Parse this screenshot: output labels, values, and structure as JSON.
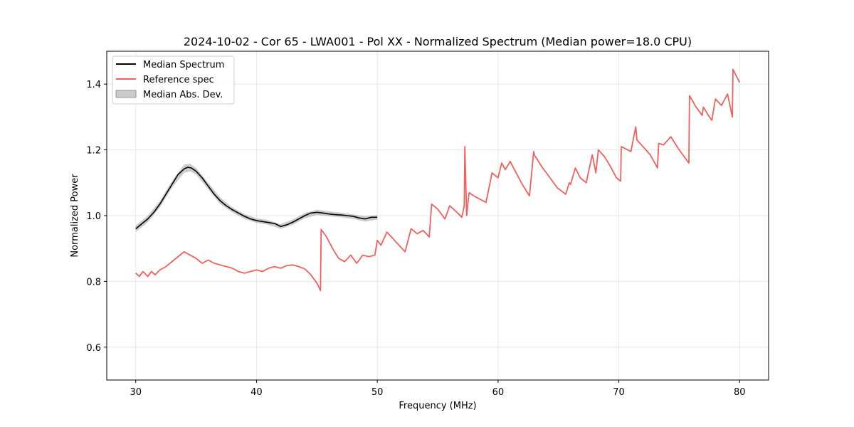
{
  "chart_data": {
    "type": "line",
    "title": "2024-10-02 - Cor 65 - LWA001 - Pol XX - Normalized Spectrum (Median power=18.0 CPU)",
    "xlabel": "Frequency (MHz)",
    "ylabel": "Normalized Power",
    "xlim": [
      27.6,
      82.4
    ],
    "ylim": [
      0.5,
      1.5
    ],
    "xticks": [
      30,
      40,
      50,
      60,
      70,
      80
    ],
    "xtick_labels": [
      "30",
      "40",
      "50",
      "60",
      "70",
      "80"
    ],
    "yticks": [
      0.6,
      0.8,
      1.0,
      1.2,
      1.4
    ],
    "ytick_labels": [
      "0.6",
      "0.8",
      "1.0",
      "1.2",
      "1.4"
    ],
    "grid": true,
    "legend_position": "top-left",
    "legend": {
      "median": "Median Spectrum",
      "reference": "Reference spec",
      "mad": "Median Abs. Dev."
    },
    "colors": {
      "median": "#000000",
      "reference": "#f0605f",
      "mad": "#a9a9a9",
      "grid": "#e6e6e6"
    },
    "series": [
      {
        "name": "Median Spectrum",
        "x": [
          30.0,
          30.5,
          31.0,
          31.5,
          32.0,
          32.5,
          33.0,
          33.5,
          34.0,
          34.3,
          34.6,
          35.0,
          35.5,
          36.0,
          36.5,
          37.0,
          37.5,
          38.0,
          38.5,
          39.0,
          39.5,
          40.0,
          40.5,
          41.0,
          41.5,
          42.0,
          42.5,
          43.0,
          43.5,
          44.0,
          44.5,
          45.0,
          45.5,
          46.0,
          46.5,
          47.0,
          47.5,
          48.0,
          48.5,
          49.0,
          49.5,
          50.0
        ],
        "y": [
          0.96,
          0.975,
          0.99,
          1.01,
          1.035,
          1.065,
          1.095,
          1.125,
          1.142,
          1.147,
          1.145,
          1.135,
          1.115,
          1.09,
          1.065,
          1.045,
          1.03,
          1.018,
          1.008,
          0.998,
          0.99,
          0.985,
          0.982,
          0.979,
          0.976,
          0.967,
          0.972,
          0.98,
          0.99,
          1.0,
          1.008,
          1.01,
          1.008,
          1.005,
          1.003,
          1.002,
          1.0,
          0.998,
          0.993,
          0.99,
          0.995,
          0.995
        ]
      },
      {
        "name": "Reference spec",
        "x": [
          30.0,
          30.3,
          30.6,
          31.0,
          31.3,
          31.6,
          32.0,
          32.5,
          33.0,
          33.5,
          34.0,
          34.5,
          35.0,
          35.5,
          36.0,
          36.5,
          37.0,
          37.5,
          38.0,
          38.5,
          39.0,
          39.5,
          40.0,
          40.5,
          41.0,
          41.5,
          42.0,
          42.5,
          43.0,
          43.5,
          44.0,
          44.5,
          45.0,
          45.3,
          45.35,
          45.8,
          46.3,
          46.8,
          47.3,
          47.8,
          48.3,
          48.8,
          49.3,
          49.8,
          50.0,
          50.3,
          50.8,
          51.3,
          51.8,
          52.3,
          52.8,
          53.3,
          53.8,
          54.3,
          54.5,
          55.0,
          55.6,
          56.0,
          56.6,
          57.0,
          57.2,
          57.25,
          57.4,
          57.6,
          58.0,
          58.5,
          59.0,
          59.5,
          60.0,
          60.3,
          60.6,
          61.0,
          61.5,
          62.0,
          62.6,
          62.95,
          63.0,
          63.6,
          64.3,
          64.9,
          65.6,
          65.9,
          66.0,
          66.4,
          66.8,
          67.3,
          67.8,
          68.1,
          68.3,
          68.8,
          69.3,
          69.8,
          70.15,
          70.2,
          71.0,
          71.4,
          71.5,
          72.0,
          72.6,
          73.2,
          73.3,
          73.7,
          74.3,
          75.0,
          75.8,
          75.85,
          76.4,
          76.9,
          77.0,
          77.5,
          77.7,
          78.0,
          78.5,
          79.0,
          79.4,
          79.45,
          80.0
        ],
        "y": [
          0.825,
          0.815,
          0.83,
          0.815,
          0.83,
          0.82,
          0.835,
          0.845,
          0.86,
          0.875,
          0.89,
          0.88,
          0.87,
          0.855,
          0.865,
          0.855,
          0.85,
          0.845,
          0.84,
          0.83,
          0.825,
          0.83,
          0.835,
          0.83,
          0.84,
          0.845,
          0.84,
          0.848,
          0.85,
          0.845,
          0.838,
          0.82,
          0.795,
          0.772,
          0.958,
          0.935,
          0.9,
          0.87,
          0.86,
          0.88,
          0.855,
          0.88,
          0.875,
          0.88,
          0.925,
          0.91,
          0.95,
          0.93,
          0.91,
          0.89,
          0.96,
          0.945,
          0.955,
          0.935,
          1.035,
          1.02,
          0.99,
          1.03,
          1.01,
          0.995,
          1.03,
          1.21,
          1.0,
          1.07,
          1.06,
          1.05,
          1.04,
          1.13,
          1.115,
          1.16,
          1.14,
          1.165,
          1.13,
          1.095,
          1.06,
          1.195,
          1.185,
          1.15,
          1.115,
          1.085,
          1.065,
          1.1,
          1.095,
          1.145,
          1.115,
          1.1,
          1.185,
          1.13,
          1.2,
          1.18,
          1.15,
          1.115,
          1.105,
          1.21,
          1.195,
          1.27,
          1.23,
          1.21,
          1.185,
          1.145,
          1.22,
          1.215,
          1.24,
          1.2,
          1.16,
          1.365,
          1.33,
          1.305,
          1.33,
          1.3,
          1.29,
          1.355,
          1.335,
          1.37,
          1.3,
          1.445,
          1.405
        ]
      }
    ],
    "mad_band": {
      "name": "Median Abs. Dev.",
      "x": [
        30.0,
        31.0,
        32.0,
        33.0,
        34.0,
        34.5,
        35.0,
        36.0,
        37.0,
        38.0,
        39.0,
        40.0,
        41.0,
        42.0,
        43.0,
        44.0,
        45.0,
        46.0,
        47.0,
        48.0,
        49.0,
        50.0
      ],
      "upper": [
        0.97,
        1.0,
        1.045,
        1.105,
        1.155,
        1.158,
        1.145,
        1.1,
        1.055,
        1.025,
        1.005,
        0.992,
        0.986,
        0.974,
        0.988,
        1.008,
        1.018,
        1.013,
        1.009,
        1.004,
        0.998,
        1.002
      ],
      "lower": [
        0.95,
        0.98,
        1.025,
        1.085,
        1.13,
        1.135,
        1.125,
        1.08,
        1.035,
        1.01,
        0.99,
        0.978,
        0.972,
        0.96,
        0.972,
        0.992,
        1.002,
        0.998,
        0.995,
        0.99,
        0.982,
        0.988
      ]
    }
  }
}
